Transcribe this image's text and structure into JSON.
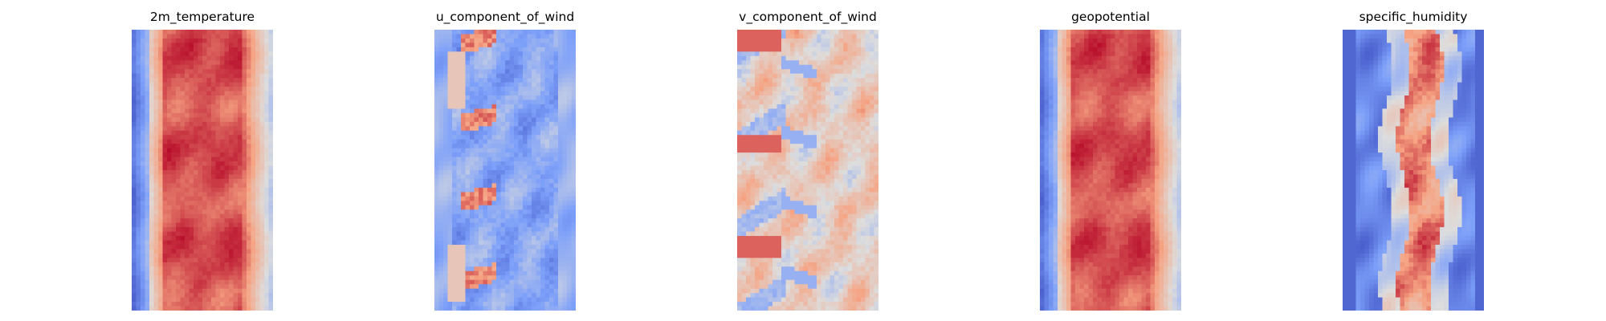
{
  "figure": {
    "background": "#ffffff",
    "colormap": "coolwarm",
    "axes_visible": false
  },
  "chart_data": [
    {
      "type": "heatmap",
      "title": "2m_temperature",
      "rows": 64,
      "cols": 32,
      "colormap": "coolwarm",
      "pattern": "hot-band"
    },
    {
      "type": "heatmap",
      "title": "u_component_of_wind",
      "rows": 64,
      "cols": 32,
      "colormap": "coolwarm",
      "pattern": "mostly-blue-with-red-streaks"
    },
    {
      "type": "heatmap",
      "title": "v_component_of_wind",
      "rows": 64,
      "cols": 32,
      "colormap": "coolwarm",
      "pattern": "mixed-warm"
    },
    {
      "type": "heatmap",
      "title": "geopotential",
      "rows": 64,
      "cols": 32,
      "colormap": "coolwarm",
      "pattern": "hot-band"
    },
    {
      "type": "heatmap",
      "title": "specific_humidity",
      "rows": 64,
      "cols": 32,
      "colormap": "coolwarm",
      "pattern": "narrow-warm-core"
    }
  ]
}
